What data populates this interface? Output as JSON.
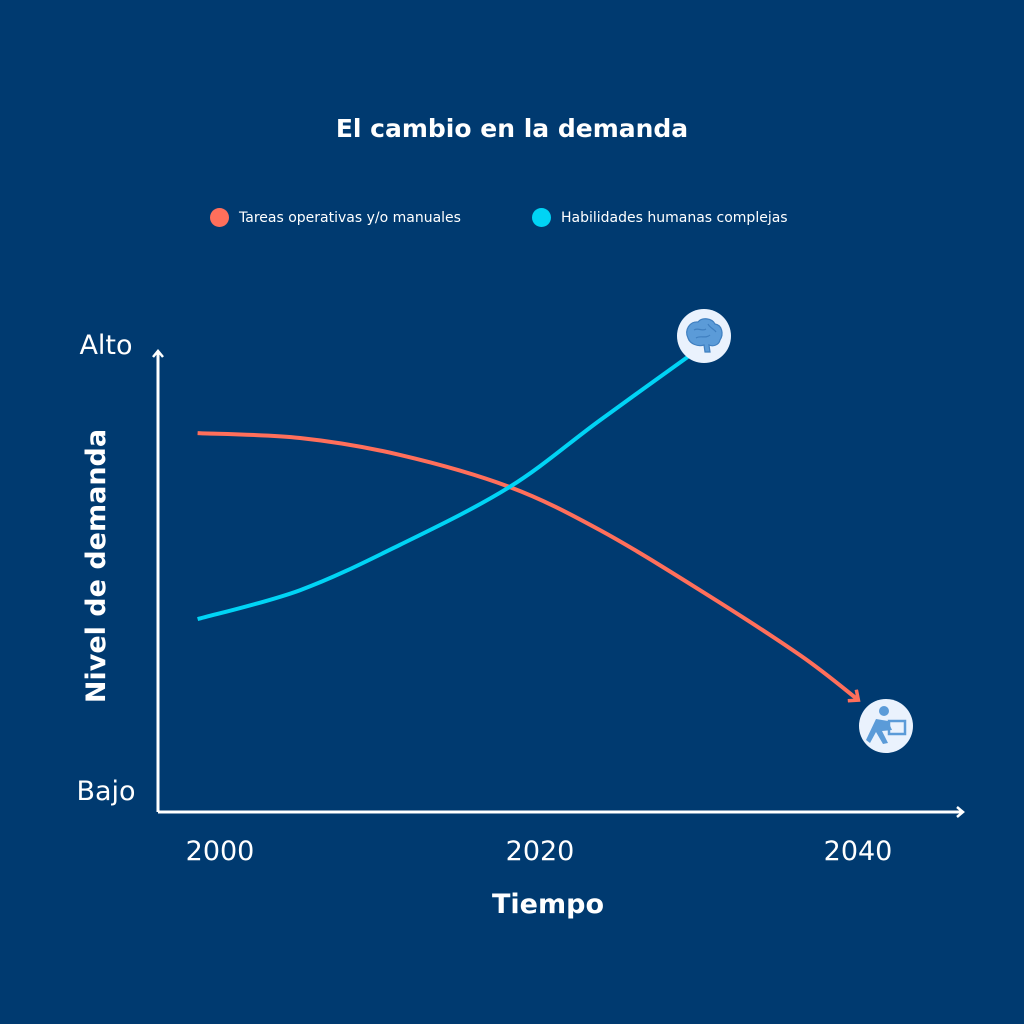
{
  "chart_data": {
    "type": "line",
    "title": "El cambio en la demanda",
    "xlabel": "Tiempo",
    "ylabel": "Nivel de demanda",
    "x_ticks": [
      "2000",
      "2020",
      "2040"
    ],
    "y_ticks": [
      "Bajo",
      "Alto"
    ],
    "xlim": [
      1996,
      2046
    ],
    "ylim": [
      0,
      100
    ],
    "grid": false,
    "legend_position": "top-center",
    "series": [
      {
        "name": "Tareas operativas y/o manuales",
        "color": "#ff6f5b",
        "icon": "worker-lifting-box-icon",
        "x": [
          1998.6,
          2005,
          2011.25,
          2018.1,
          2023.75,
          2030,
          2036.25,
          2039.9
        ],
        "y": [
          80.2,
          79.1,
          75.3,
          68.1,
          58.4,
          44.9,
          30.3,
          20.2
        ]
      },
      {
        "name": "Habilidades humanas complejas",
        "color": "#00d4f5",
        "icon": "brain-icon",
        "x": [
          1998.6,
          2005,
          2011.25,
          2018.1,
          2023.75,
          2030
        ],
        "y": [
          38.4,
          44.9,
          55.1,
          68.1,
          83.1,
          99.3
        ]
      }
    ]
  }
}
